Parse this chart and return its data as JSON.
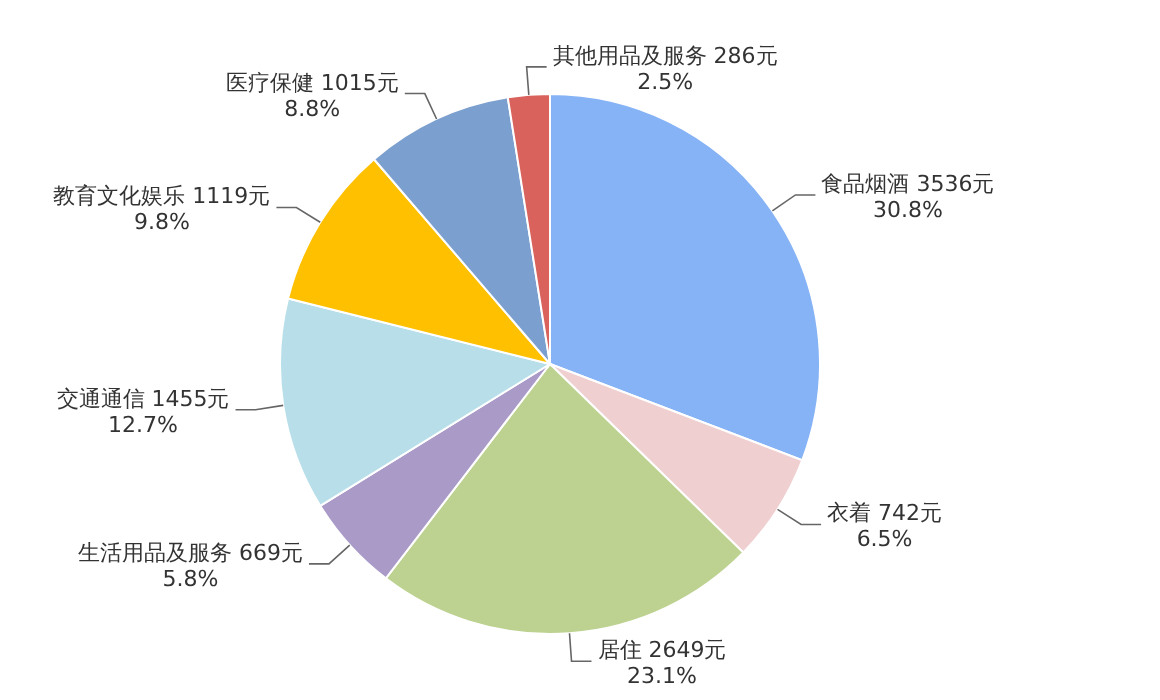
{
  "chart_data": {
    "type": "pie",
    "categories": [
      "食品烟酒 3536元",
      "衣着 742元",
      "居住 2649元",
      "生活用品及服务 669元",
      "交通通信 1455元",
      "教育文化娱乐 1119元",
      "医疗保健 1015元",
      "其他用品及服务 286元"
    ],
    "values": [
      30.8,
      6.5,
      23.1,
      5.8,
      12.7,
      9.8,
      8.8,
      2.5
    ],
    "value_labels": [
      "30.8%",
      "6.5%",
      "23.1%",
      "5.8%",
      "12.7%",
      "9.8%",
      "8.8%",
      "2.5%"
    ],
    "colors": [
      "#86b2f6",
      "#f0cfd0",
      "#bdd290",
      "#a99ac7",
      "#b8dfe9",
      "#ffc000",
      "#7b9fce",
      "#d9625c"
    ]
  }
}
